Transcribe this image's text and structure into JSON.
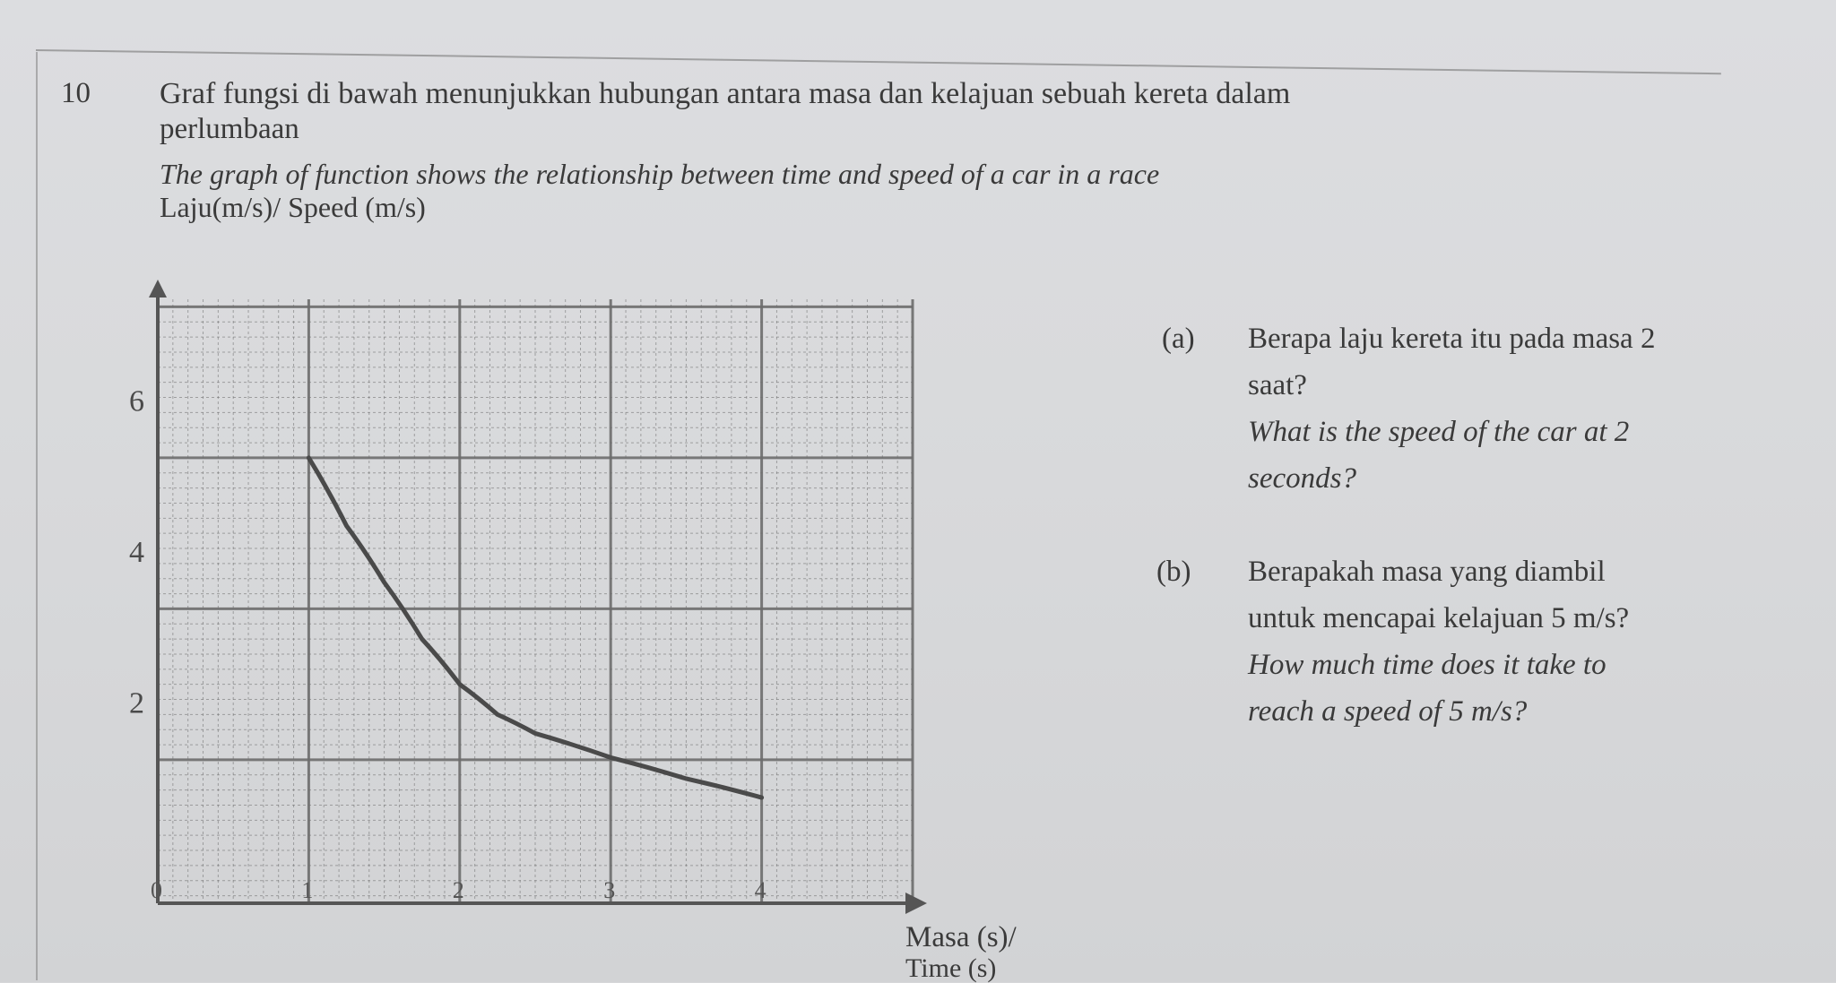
{
  "question": {
    "number": "10",
    "malay_line1": "Graf fungsi di bawah menunjukkan hubungan antara masa dan kelajuan sebuah kereta dalam",
    "malay_line2": "perlumbaan",
    "english": "The graph of function shows the relationship between time and speed of a car in a race",
    "y_axis_caption": "Laju(m/s)/ Speed (m/s)"
  },
  "parts": {
    "a": {
      "label": "(a)",
      "malay_1": "Berapa laju kereta itu pada masa 2",
      "malay_2": "saat?",
      "english_1": "What is the speed of the car at 2",
      "english_2": "seconds?"
    },
    "b": {
      "label": "(b)",
      "malay_1": "Berapakah masa yang diambil",
      "malay_2": "untuk mencapai kelajuan 5 m/s?",
      "english_1": "How much time does it take to",
      "english_2": "reach a speed of 5 m/s?"
    }
  },
  "chart_data": {
    "type": "line",
    "xlabel": "Masa (s)/",
    "xlabel_cut": "Time (s)",
    "ylabel": "Laju(m/s)/ Speed (m/s)",
    "x_ticks": [
      "0",
      "1",
      "2",
      "3",
      "4"
    ],
    "x_tick_values": [
      0,
      1,
      2,
      3,
      4
    ],
    "y_ticks": [
      "2",
      "4",
      "6"
    ],
    "y_tick_values": [
      2,
      4,
      6
    ],
    "xlim": [
      0,
      5
    ],
    "ylim": [
      -0.9,
      7.1
    ],
    "grid": true,
    "series": [
      {
        "x": [
          1,
          1.25,
          1.5,
          1.75,
          2,
          2.25,
          2.5,
          3,
          3.5,
          4
        ],
        "y": [
          5.0,
          4.1,
          3.35,
          2.6,
          2.0,
          1.6,
          1.35,
          1.03,
          0.75,
          0.5
        ]
      }
    ],
    "colors": {
      "ink": "#4a4a4a",
      "grid": "#6d6d6d"
    }
  }
}
